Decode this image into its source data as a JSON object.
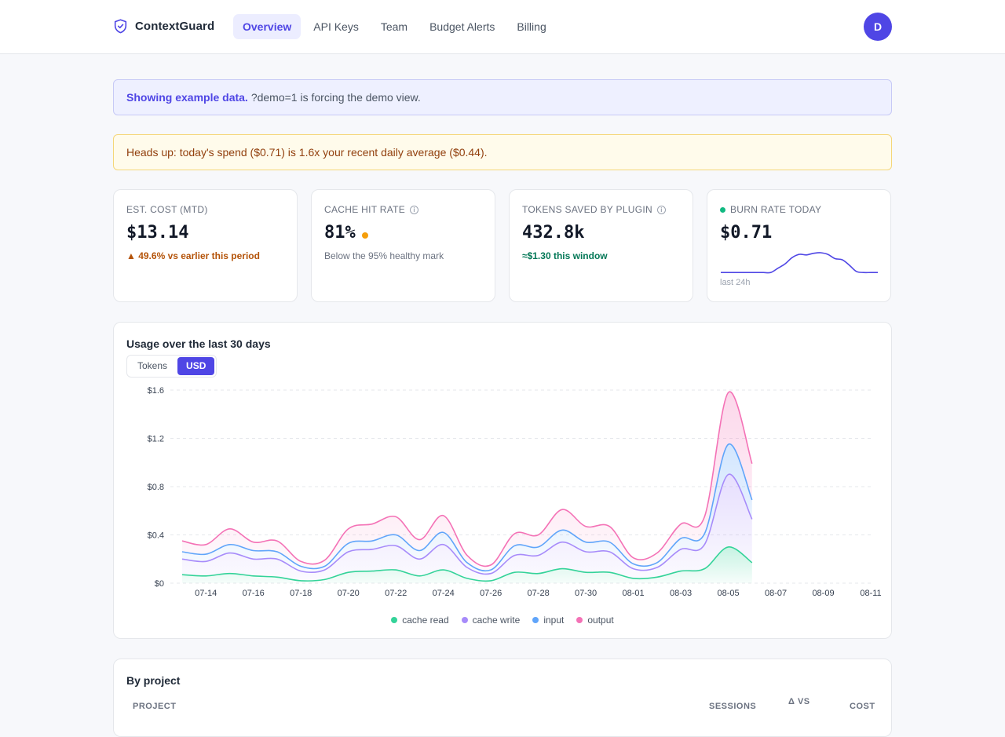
{
  "app": {
    "name": "ContextGuard",
    "avatar_initial": "D"
  },
  "nav": {
    "items": [
      {
        "label": "Overview",
        "active": true
      },
      {
        "label": "API Keys",
        "active": false
      },
      {
        "label": "Team",
        "active": false
      },
      {
        "label": "Budget Alerts",
        "active": false
      },
      {
        "label": "Billing",
        "active": false
      }
    ]
  },
  "banners": {
    "demo_strong": "Showing example data.",
    "demo_text": "?demo=1 is forcing the demo view.",
    "warning": "Heads up: today's spend ($0.71) is 1.6x your recent daily average ($0.44)."
  },
  "cards": {
    "cost": {
      "label": "EST. COST (MTD)",
      "value": "$13.14",
      "sub": "▲ 49.6% vs earlier this period"
    },
    "cache": {
      "label": "CACHE HIT RATE",
      "value": "81%",
      "sub": "Below the 95% healthy mark"
    },
    "tokens": {
      "label": "TOKENS SAVED BY PLUGIN",
      "value": "432.8k",
      "sub": "≈$1.30 this window"
    },
    "burn": {
      "label": "BURN RATE TODAY",
      "value": "$0.71",
      "sparkline_caption": "last 24h",
      "sparkline_values": [
        0.1,
        0.1,
        0.1,
        0.1,
        0.1,
        0.1,
        0.1,
        0.1,
        0.18,
        0.26,
        0.38,
        0.44,
        0.43,
        0.46,
        0.47,
        0.44,
        0.36,
        0.34,
        0.24,
        0.12,
        0.1,
        0.1,
        0.1
      ]
    }
  },
  "colors": {
    "accent": "#4f46e5",
    "cache_read": "#34d399",
    "cache_write": "#a78bfa",
    "input": "#60a5fa",
    "output": "#f472b6"
  },
  "usage": {
    "title": "Usage over the last 30 days",
    "toggle": {
      "tokens": "Tokens",
      "usd": "USD",
      "selected": "USD"
    }
  },
  "chart_data": {
    "type": "area",
    "stacked": true,
    "x": [
      "07-13",
      "07-14",
      "07-15",
      "07-16",
      "07-17",
      "07-18",
      "07-19",
      "07-20",
      "07-21",
      "07-22",
      "07-23",
      "07-24",
      "07-25",
      "07-26",
      "07-27",
      "07-28",
      "07-29",
      "07-30",
      "07-31",
      "08-01",
      "08-02",
      "08-03",
      "08-04",
      "08-05",
      "08-06",
      "08-07",
      "08-08",
      "08-09",
      "08-10",
      "08-11"
    ],
    "x_tick_labels": [
      "07-14",
      "07-16",
      "07-18",
      "07-20",
      "07-22",
      "07-24",
      "07-26",
      "07-28",
      "07-30",
      "08-01",
      "08-03",
      "08-05",
      "08-07",
      "08-09",
      "08-11"
    ],
    "y_tick_labels": [
      "$0",
      "$0.4",
      "$0.8",
      "$1.2",
      "$1.6"
    ],
    "ylim": [
      0,
      1.6
    ],
    "grid": true,
    "legend_position": "bottom",
    "series": [
      {
        "name": "cache read",
        "values": [
          0.07,
          0.06,
          0.08,
          0.06,
          0.05,
          0.02,
          0.03,
          0.09,
          0.1,
          0.11,
          0.06,
          0.11,
          0.04,
          0.02,
          0.09,
          0.08,
          0.12,
          0.09,
          0.09,
          0.04,
          0.05,
          0.1,
          0.12,
          0.3,
          0.17,
          null,
          null,
          null,
          null,
          null
        ]
      },
      {
        "name": "cache write",
        "values": [
          0.13,
          0.12,
          0.17,
          0.14,
          0.15,
          0.08,
          0.08,
          0.17,
          0.18,
          0.2,
          0.14,
          0.21,
          0.09,
          0.06,
          0.14,
          0.15,
          0.22,
          0.17,
          0.17,
          0.08,
          0.08,
          0.18,
          0.2,
          0.6,
          0.36,
          null,
          null,
          null,
          null,
          null
        ]
      },
      {
        "name": "input",
        "values": [
          0.06,
          0.06,
          0.07,
          0.07,
          0.06,
          0.04,
          0.03,
          0.07,
          0.07,
          0.09,
          0.07,
          0.1,
          0.04,
          0.03,
          0.08,
          0.07,
          0.1,
          0.08,
          0.08,
          0.04,
          0.04,
          0.09,
          0.09,
          0.25,
          0.16,
          null,
          null,
          null,
          null,
          null
        ]
      },
      {
        "name": "output",
        "values": [
          0.09,
          0.08,
          0.13,
          0.07,
          0.09,
          0.04,
          0.05,
          0.12,
          0.14,
          0.15,
          0.09,
          0.14,
          0.06,
          0.04,
          0.1,
          0.1,
          0.17,
          0.13,
          0.13,
          0.05,
          0.08,
          0.12,
          0.14,
          0.43,
          0.3,
          null,
          null,
          null,
          null,
          null
        ]
      }
    ]
  },
  "projects": {
    "title": "By project",
    "columns": [
      "PROJECT",
      "SESSIONS",
      "Δ VS",
      "COST"
    ]
  }
}
